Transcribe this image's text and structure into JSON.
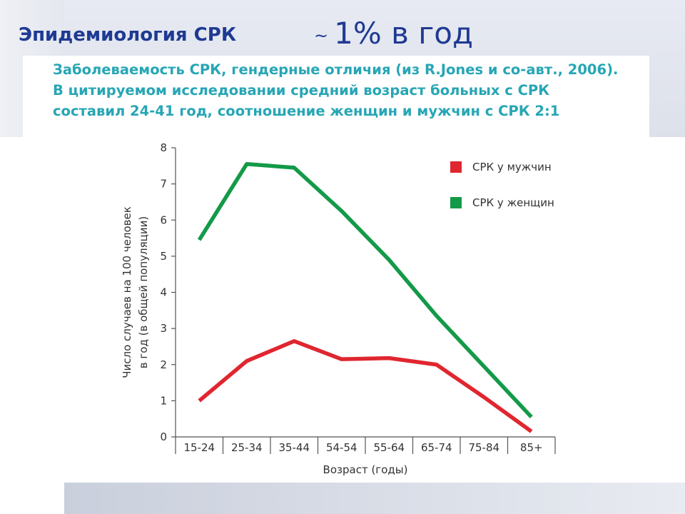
{
  "slide": {
    "title": "Эпидемиология СРК",
    "subtitle_tilde": "~",
    "subtitle_value": "1% в год",
    "caption": "Заболеваемость СРК, гендерные отличия (из R.Jones и со-авт., 2006). В цитируемом исследовании средний возраст больных с СРК составил 24-41 год, соотношение женщин и мужчин с СРК 2:1"
  },
  "colors": {
    "title": "#1f3a93",
    "caption": "#27a6b5",
    "men": "#e0262f",
    "women": "#139a48"
  },
  "chart_data": {
    "type": "line",
    "categories": [
      "15-24",
      "25-34",
      "35-44",
      "54-54",
      "55-64",
      "65-74",
      "75-84",
      "85+"
    ],
    "series": [
      {
        "name": "СРК у мужчин",
        "color": "#e0262f",
        "values": [
          1.0,
          2.1,
          2.65,
          2.15,
          2.18,
          2.0,
          1.1,
          0.15
        ]
      },
      {
        "name": "СРК у женщин",
        "color": "#139a48",
        "values": [
          5.45,
          7.55,
          7.45,
          6.25,
          4.9,
          3.35,
          1.95,
          0.55
        ]
      }
    ],
    "xlabel": "Возраст (годы)",
    "ylabel_line1": "Число случаев на 100 человек",
    "ylabel_line2": "в год (в общей популяции)",
    "ylim": [
      0,
      8
    ],
    "yticks": [
      0,
      1,
      2,
      3,
      4,
      5,
      6,
      7,
      8
    ],
    "grid": false,
    "legend_position": "top-right"
  }
}
